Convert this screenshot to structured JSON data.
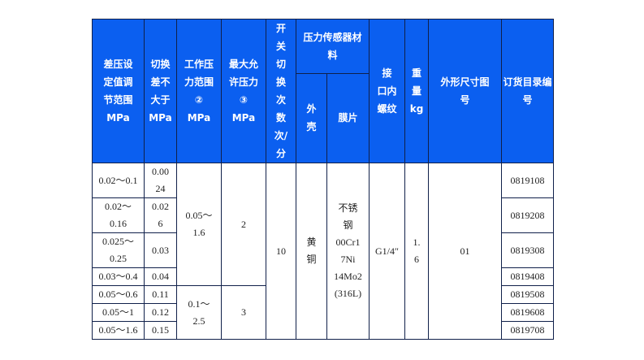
{
  "colors": {
    "header_bg": "#0b5ff0",
    "header_text": "#ffffff",
    "border": "#10204a"
  },
  "headers": {
    "diff_range": "差压设\n定值调\n节范围\nMPa",
    "switch_diff": "切换\n差不\n大于\nMPa",
    "work_range": "工作压\n力范围\n②\nMPa",
    "max_pressure": "最大允\n许压力\n③\nMPa",
    "switch_count": "开\n关\n切\n换\n次\n数\n次/\n分",
    "sensor_material": "压力传感器材\n料",
    "shell": "外\n壳",
    "diaphragm": "膜片",
    "thread": "接\n口内\n螺纹",
    "weight": "重\n量\nkg",
    "drawing_no": "外形尺寸图\n号",
    "catalog_no": "订货目录编\n号"
  },
  "rows": [
    {
      "diff_range": "0.02～0.1",
      "switch_diff": "0.00\n24",
      "catalog_no": "0819108"
    },
    {
      "diff_range": "0.02～\n0.16",
      "switch_diff": "0.02\n6",
      "catalog_no": "0819208"
    },
    {
      "diff_range": "0.025～\n0.25",
      "switch_diff": "0.03",
      "catalog_no": "0819308"
    },
    {
      "diff_range": "0.03～0.4",
      "switch_diff": "0.04",
      "catalog_no": "0819408"
    },
    {
      "diff_range": "0.05～0.6",
      "switch_diff": "0.11",
      "catalog_no": "0819508"
    },
    {
      "diff_range": "0.05～1",
      "switch_diff": "0.12",
      "catalog_no": "0819608"
    },
    {
      "diff_range": "0.05～1.6",
      "switch_diff": "0.15",
      "catalog_no": "0819708"
    }
  ],
  "merged": {
    "work_range_a": "0.05～\n1.6",
    "max_pressure_a": "2",
    "work_range_b": "0.1～\n2.5",
    "max_pressure_b": "3",
    "switch_count": "10",
    "shell": "黄\n铜",
    "diaphragm": "不锈\n钢\n00Cr1\n7Ni\n14Mo2\n(316L)",
    "thread": "G1/4″",
    "weight": "1.\n6",
    "drawing_no": "01"
  }
}
